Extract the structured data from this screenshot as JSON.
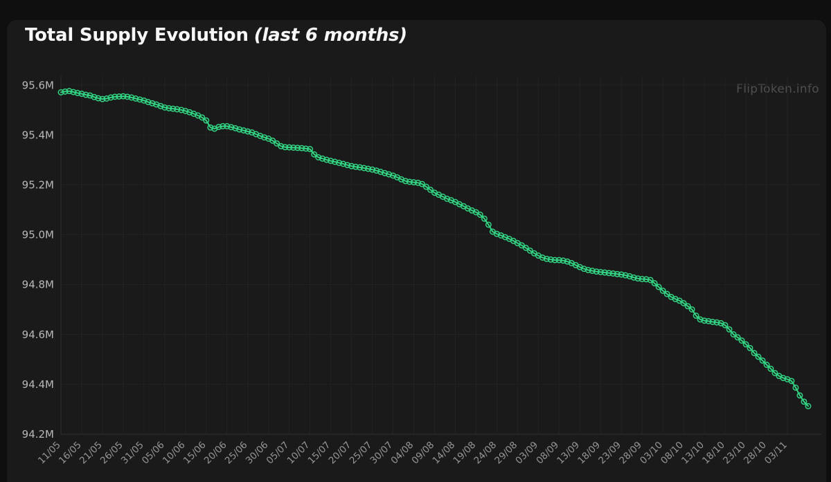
{
  "page": {
    "title_main": "Total Supply Evolution",
    "title_suffix": "(last 6 months)",
    "watermark": "FlipToken.info"
  },
  "colors": {
    "page_bg": "#0f0f0f",
    "card_bg": "#1a1a1a",
    "grid": "#222222",
    "axis": "#2d2d2d",
    "line": "#32d583",
    "y_label": "#b8b8b8",
    "x_label": "#969696",
    "title": "#f7f7f7",
    "watermark": "#4f4f4f"
  },
  "chart_data": {
    "type": "line",
    "title": "Total Supply Evolution (last 6 months)",
    "series_name": "Total Supply",
    "unit": "M",
    "grid": true,
    "legend": false,
    "marker": "open-circle",
    "x_ticks_every_n_points": 5,
    "x_tick_labels": [
      "11/05",
      "16/05",
      "21/05",
      "26/05",
      "31/05",
      "05/06",
      "10/06",
      "15/06",
      "20/06",
      "25/06",
      "30/06",
      "05/07",
      "10/07",
      "15/07",
      "20/07",
      "25/07",
      "30/07",
      "04/08",
      "09/08",
      "14/08",
      "19/08",
      "24/08",
      "29/08",
      "03/09",
      "08/09",
      "13/09",
      "18/09",
      "23/09",
      "28/09",
      "03/10",
      "08/10",
      "13/10",
      "18/10",
      "23/10",
      "28/10",
      "03/11"
    ],
    "y_tick_labels": [
      "95.6M",
      "95.4M",
      "95.2M",
      "95.0M",
      "94.8M",
      "94.6M",
      "94.4M",
      "94.2M"
    ],
    "y_tick_values": [
      95.6,
      95.4,
      95.2,
      95.0,
      94.8,
      94.6,
      94.4,
      94.2
    ],
    "ylim": [
      94.17,
      95.64
    ],
    "values": [
      95.571,
      95.574,
      95.576,
      95.572,
      95.568,
      95.565,
      95.561,
      95.558,
      95.552,
      95.547,
      95.544,
      95.546,
      95.55,
      95.553,
      95.554,
      95.555,
      95.553,
      95.55,
      95.546,
      95.542,
      95.538,
      95.532,
      95.527,
      95.522,
      95.516,
      95.51,
      95.507,
      95.505,
      95.503,
      95.5,
      95.496,
      95.491,
      95.485,
      95.478,
      95.47,
      95.458,
      95.43,
      95.425,
      95.432,
      95.435,
      95.435,
      95.431,
      95.427,
      95.422,
      95.418,
      95.414,
      95.41,
      95.403,
      95.396,
      95.39,
      95.385,
      95.377,
      95.366,
      95.355,
      95.351,
      95.35,
      95.349,
      95.348,
      95.347,
      95.345,
      95.343,
      95.322,
      95.31,
      95.305,
      95.3,
      95.296,
      95.292,
      95.288,
      95.284,
      95.279,
      95.275,
      95.272,
      95.27,
      95.267,
      95.264,
      95.261,
      95.257,
      95.252,
      95.247,
      95.242,
      95.237,
      95.23,
      95.222,
      95.215,
      95.212,
      95.21,
      95.208,
      95.203,
      95.192,
      95.18,
      95.168,
      95.16,
      95.152,
      95.144,
      95.138,
      95.131,
      95.122,
      95.114,
      95.105,
      95.097,
      95.09,
      95.08,
      95.064,
      95.04,
      95.012,
      95.003,
      94.997,
      94.99,
      94.983,
      94.975,
      94.966,
      94.957,
      94.947,
      94.936,
      94.925,
      94.916,
      94.908,
      94.903,
      94.9,
      94.898,
      94.898,
      94.896,
      94.892,
      94.886,
      94.878,
      94.87,
      94.863,
      94.858,
      94.855,
      94.852,
      94.85,
      94.848,
      94.846,
      94.844,
      94.842,
      94.84,
      94.837,
      94.833,
      94.828,
      94.824,
      94.822,
      94.821,
      94.818,
      94.805,
      94.79,
      94.775,
      94.762,
      94.75,
      94.742,
      94.735,
      94.725,
      94.713,
      94.7,
      94.675,
      94.66,
      94.655,
      94.653,
      94.65,
      94.648,
      94.645,
      94.637,
      94.62,
      94.6,
      94.588,
      94.575,
      94.56,
      94.545,
      94.525,
      94.51,
      94.495,
      94.478,
      94.462,
      94.445,
      94.433,
      94.425,
      94.42,
      94.413,
      94.386,
      94.355,
      94.33,
      94.312
    ]
  }
}
